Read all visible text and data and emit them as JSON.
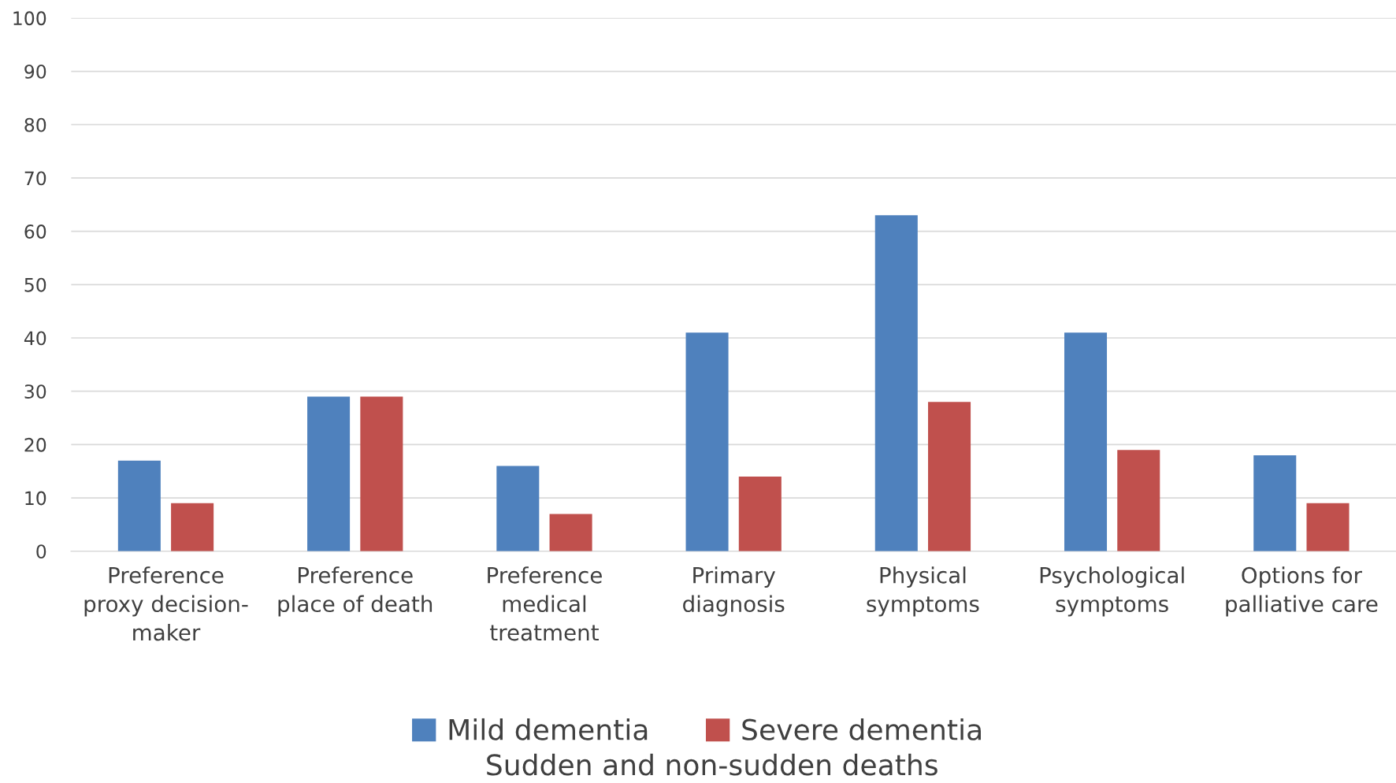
{
  "chart_data": {
    "type": "bar",
    "xlabel": "Sudden and non-sudden deaths",
    "categories": [
      "Preference\nproxy decision-\nmaker",
      "Preference\nplace of death",
      "Preference\nmedical\ntreatment",
      "Primary\ndiagnosis",
      "Physical\nsymptoms",
      "Psychological\nsymptoms",
      "Options for\npalliative care"
    ],
    "series": [
      {
        "name": "Mild dementia",
        "color": "#4f81bd",
        "values": [
          17,
          29,
          16,
          41,
          63,
          41,
          18
        ]
      },
      {
        "name": "Severe dementia",
        "color": "#c0504d",
        "values": [
          9,
          29,
          7,
          14,
          28,
          19,
          9
        ]
      }
    ],
    "ylim": [
      0,
      100
    ],
    "yticks": [
      0,
      10,
      20,
      30,
      40,
      50,
      60,
      70,
      80,
      90,
      100
    ],
    "grid": "y",
    "legend": "bottom"
  }
}
